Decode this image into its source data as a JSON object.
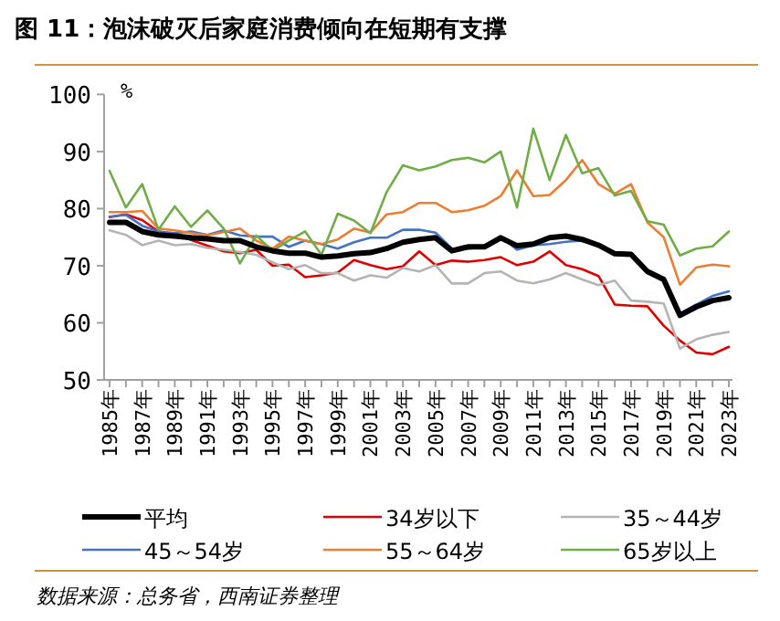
{
  "chart_data": {
    "type": "line",
    "title": "图 11：泡沫破灭后家庭消费倾向在短期有支撑",
    "ylabel": "%",
    "categories": [
      "1985年",
      null,
      "1987年",
      null,
      "1989年",
      null,
      "1991年",
      null,
      "1993年",
      null,
      "1995年",
      null,
      "1997年",
      null,
      "1999年",
      null,
      "2001年",
      null,
      "2003年",
      null,
      "2005年",
      null,
      "2007年",
      null,
      "2009年",
      null,
      "2011年",
      null,
      "2013年",
      null,
      "2015年",
      null,
      "2017年",
      null,
      "2019年",
      null,
      "2021年",
      null,
      "2023年"
    ],
    "series": [
      {
        "name": "平均",
        "color": "#000000",
        "values": [
          77.6,
          77.6,
          76,
          75.4,
          75.2,
          74.9,
          74.7,
          74.4,
          74.4,
          73.3,
          72.6,
          72.2,
          72.2,
          71.5,
          71.7,
          72.1,
          72.3,
          73,
          74.1,
          74.6,
          74.9,
          72.6,
          73.3,
          73.3,
          74.9,
          73.5,
          73.8,
          74.9,
          75.2,
          74.6,
          73.6,
          72.1,
          72,
          69,
          67.6,
          61.3,
          62.8,
          63.9,
          64.4
        ]
      },
      {
        "name": "34岁以下",
        "color": "#e00000",
        "values": [
          78.5,
          79,
          78,
          76,
          75.5,
          74.5,
          73.5,
          72.5,
          72.2,
          72.8,
          70,
          70.2,
          68,
          68.3,
          68.8,
          71,
          70.1,
          69.4,
          69.9,
          72.5,
          70.1,
          70.9,
          70.7,
          71,
          71.5,
          70.1,
          70.7,
          72.5,
          70.1,
          69.4,
          68.2,
          63.2,
          63,
          62.9,
          59.5,
          56.9,
          54.8,
          54.5,
          55.8
        ]
      },
      {
        "name": "35～44岁",
        "color": "#b4b4b4",
        "values": [
          76.2,
          75.4,
          73.6,
          74.4,
          73.6,
          73.8,
          73.1,
          72.8,
          72.4,
          71.9,
          70.6,
          69.4,
          70.1,
          68.7,
          68.7,
          67.4,
          68.3,
          67.9,
          69.6,
          69,
          70.1,
          66.9,
          66.9,
          68.7,
          69,
          67.4,
          66.9,
          67.6,
          68.7,
          67.6,
          66.6,
          67.4,
          63.9,
          63.7,
          63.4,
          55.5,
          57.1,
          57.9,
          58.4
        ]
      },
      {
        "name": "45～54岁",
        "color": "#4472c4",
        "values": [
          78.6,
          78.9,
          77,
          76,
          75.7,
          76,
          75.4,
          76.2,
          75.3,
          75.1,
          75.1,
          73.3,
          74.4,
          73.8,
          73,
          74.1,
          74.9,
          74.9,
          76.3,
          76.3,
          75.8,
          73,
          73,
          73.2,
          75.1,
          72.8,
          73.6,
          73.8,
          74.2,
          74.4,
          73.6,
          71.9,
          71.9,
          68.8,
          67.7,
          61.6,
          63.2,
          64.7,
          65.5
        ]
      },
      {
        "name": "55～64岁",
        "color": "#ed7d31",
        "values": [
          79.4,
          79.4,
          79.6,
          76.5,
          76.2,
          75.7,
          75.3,
          75.9,
          76.5,
          74.4,
          73,
          75.1,
          74.4,
          73.8,
          74.6,
          76.5,
          75.8,
          79,
          79.4,
          81,
          81,
          79.4,
          79.7,
          80.5,
          82.2,
          86.7,
          82.2,
          82.4,
          85,
          88.5,
          84.3,
          82.6,
          84.3,
          77.6,
          75,
          66.7,
          69.7,
          70.2,
          69.9
        ]
      },
      {
        "name": "65岁以上",
        "color": "#70ad47",
        "values": [
          86.6,
          80.2,
          84.3,
          76.3,
          80.4,
          76.8,
          79.7,
          76.5,
          70.4,
          75.3,
          72.6,
          74.4,
          76,
          71.9,
          79.1,
          77.9,
          75.7,
          82.9,
          87.6,
          86.7,
          87.4,
          88.5,
          88.9,
          88.1,
          90,
          80.2,
          94,
          85,
          92.9,
          86.2,
          87.1,
          82.3,
          83.1,
          77.8,
          77.2,
          71.8,
          73,
          73.4,
          76
        ]
      }
    ],
    "ylim": [
      50,
      100
    ],
    "yticks": [
      50,
      60,
      70,
      80,
      90,
      100
    ],
    "legend": "bottom",
    "annotations": [
      "数据来源：总务省，西南证券整理"
    ]
  }
}
